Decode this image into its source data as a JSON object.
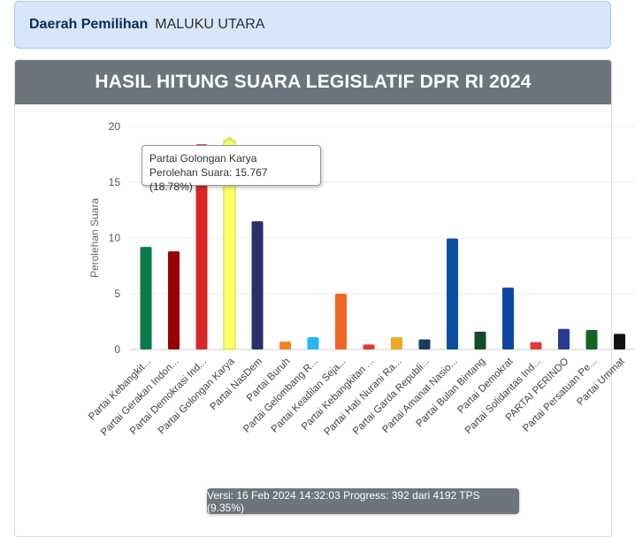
{
  "region": {
    "label": "Daerah Pemilihan",
    "value": "MALUKU UTARA"
  },
  "header": {
    "title": "HASIL HITUNG SUARA LEGISLATIF DPR RI 2024"
  },
  "tooltip": {
    "party": "Partai Golongan Karya",
    "detail": "Perolehan Suara: 15.767 (18.78%)"
  },
  "status": {
    "text": "Versi: 16 Feb 2024 14:32:03 Progress: 392 dari 4192 TPS (9.35%)"
  },
  "chart_data": {
    "type": "bar",
    "ylabel": "Perolehan Suara",
    "ylim": [
      0,
      20
    ],
    "yticks": [
      0,
      5,
      10,
      15,
      20
    ],
    "grid": true,
    "categories": [
      "Partai Kebangkit...",
      "Partai Gerakan Indon...",
      "Partai Demokrasi Ind...",
      "Partai Golongan Karya",
      "Partai NasDem",
      "Partai Buruh",
      "Partai Gelombang R...",
      "Partai Keadilan Seja...",
      "Partai Kebangkitan ...",
      "Partai Hati Nurani Ra...",
      "Partai Garda Republi...",
      "Partai Amanat Nasio...",
      "Partai Bulan Bintang",
      "Partai Demokrat",
      "Partai Solidaritas Ind...",
      "PARTAI PERINDO",
      "Partai Persatuan Pe...",
      "Partai Ummat"
    ],
    "values": [
      9.2,
      8.8,
      18.4,
      18.78,
      11.5,
      0.7,
      1.1,
      5.0,
      0.45,
      1.1,
      0.9,
      9.95,
      1.6,
      5.55,
      0.65,
      1.85,
      1.75,
      1.4
    ],
    "colors": [
      "#0b7a4b",
      "#990000",
      "#d62828",
      "#ffff66",
      "#2c2f6b",
      "#f58220",
      "#29b6f6",
      "#f26522",
      "#e53935",
      "#f5a623",
      "#1f3a60",
      "#0d4ea3",
      "#114a2d",
      "#0d47a1",
      "#e53935",
      "#2a3b8f",
      "#12661f",
      "#111111"
    ],
    "highlight_index": 3
  }
}
